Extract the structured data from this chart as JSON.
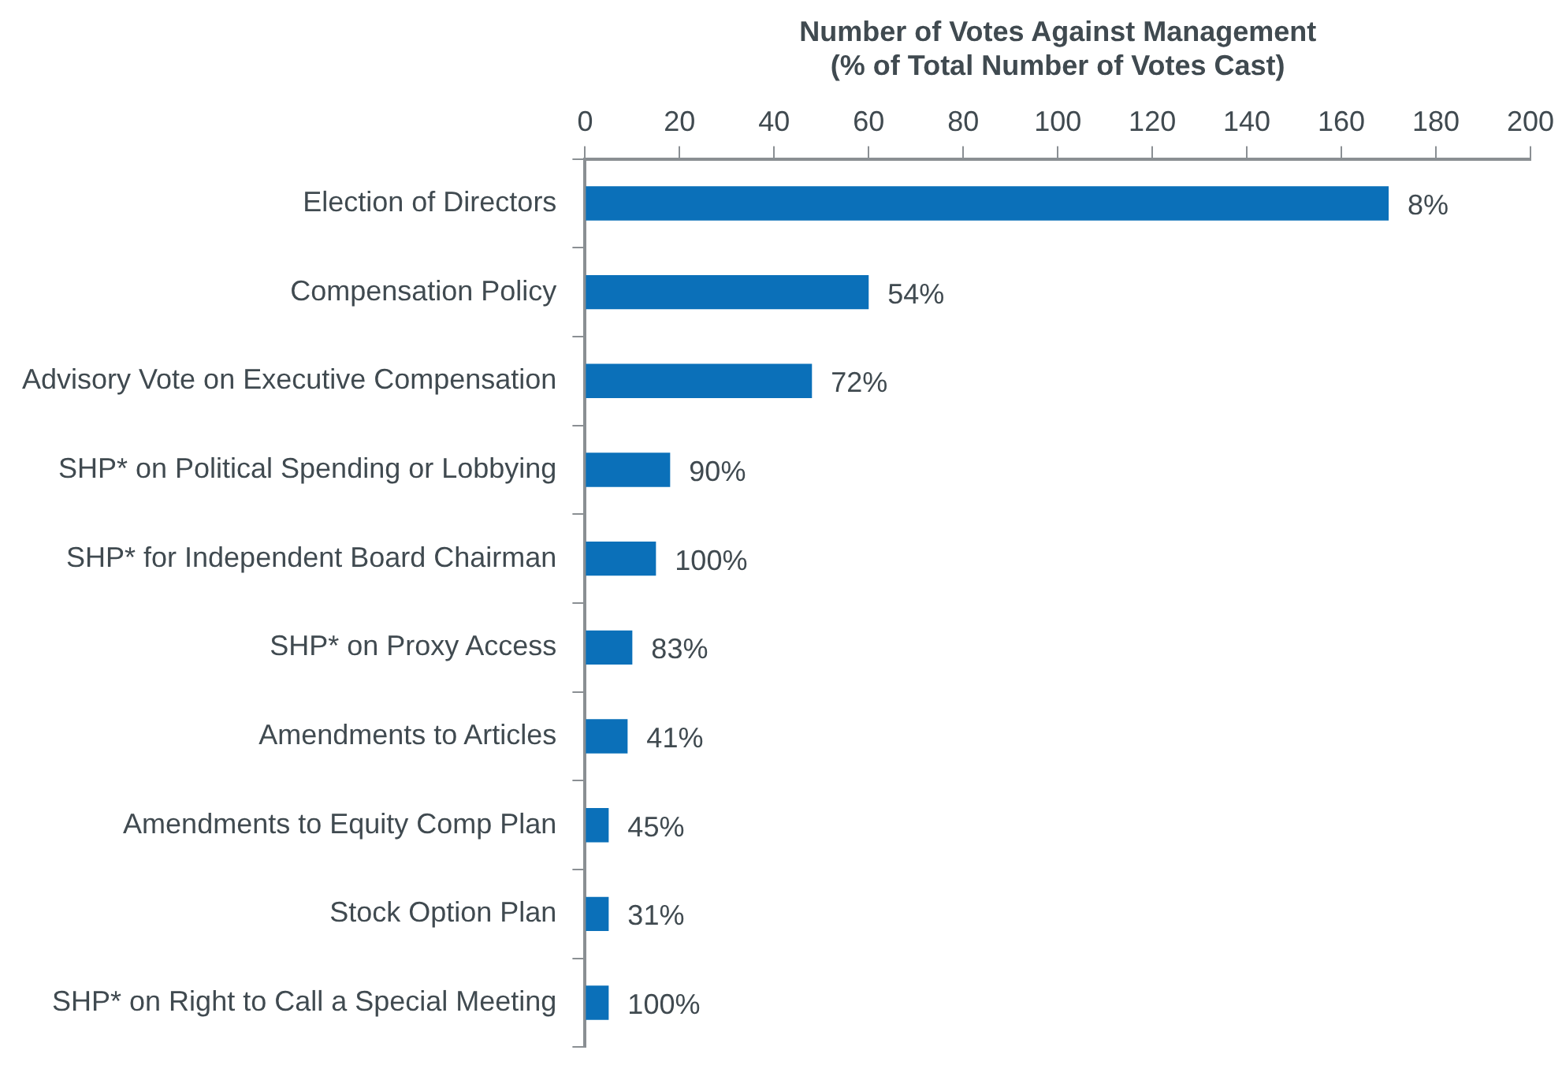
{
  "chart_data": {
    "type": "bar",
    "orientation": "horizontal",
    "xlabel": "Number of Votes Against Management\n(% of Total Number of Votes Cast)",
    "categories": [
      "Election of Directors",
      "Compensation Policy",
      "Advisory Vote on Executive Compensation",
      "SHP* on Political Spending or Lobbying",
      "SHP* for Independent Board Chairman",
      "SHP* on Proxy Access",
      "Amendments to Articles",
      "Amendments to Equity Comp Plan",
      "Stock Option Plan",
      "SHP* on Right to Call a Special Meeting"
    ],
    "values": [
      170,
      60,
      48,
      18,
      15,
      10,
      9,
      5,
      5,
      5
    ],
    "annotations": [
      {
        "text": "8%",
        "x": 170,
        "y": "Election of Directors"
      },
      {
        "text": "54%",
        "x": 60,
        "y": "Compensation Policy"
      },
      {
        "text": "72%",
        "x": 48,
        "y": "Advisory Vote on Executive Compensation"
      },
      {
        "text": "90%",
        "x": 18,
        "y": "SHP* on Political Spending or Lobbying"
      },
      {
        "text": "100%",
        "x": 15,
        "y": "SHP* for Independent Board Chairman"
      },
      {
        "text": "83%",
        "x": 10,
        "y": "SHP* on Proxy Access"
      },
      {
        "text": "41%",
        "x": 9,
        "y": "Amendments to Articles"
      },
      {
        "text": "45%",
        "x": 5,
        "y": "Amendments to Equity Comp Plan"
      },
      {
        "text": "31%",
        "x": 5,
        "y": "Stock Option Plan"
      },
      {
        "text": "100%",
        "x": 5,
        "y": "SHP* on Right to Call a Special Meeting"
      }
    ],
    "color": "#0b70b9",
    "xlim": [
      0,
      200
    ],
    "xticks": [
      0,
      20,
      40,
      60,
      80,
      100,
      120,
      140,
      160,
      180,
      200
    ],
    "grid": false,
    "legend": false
  }
}
